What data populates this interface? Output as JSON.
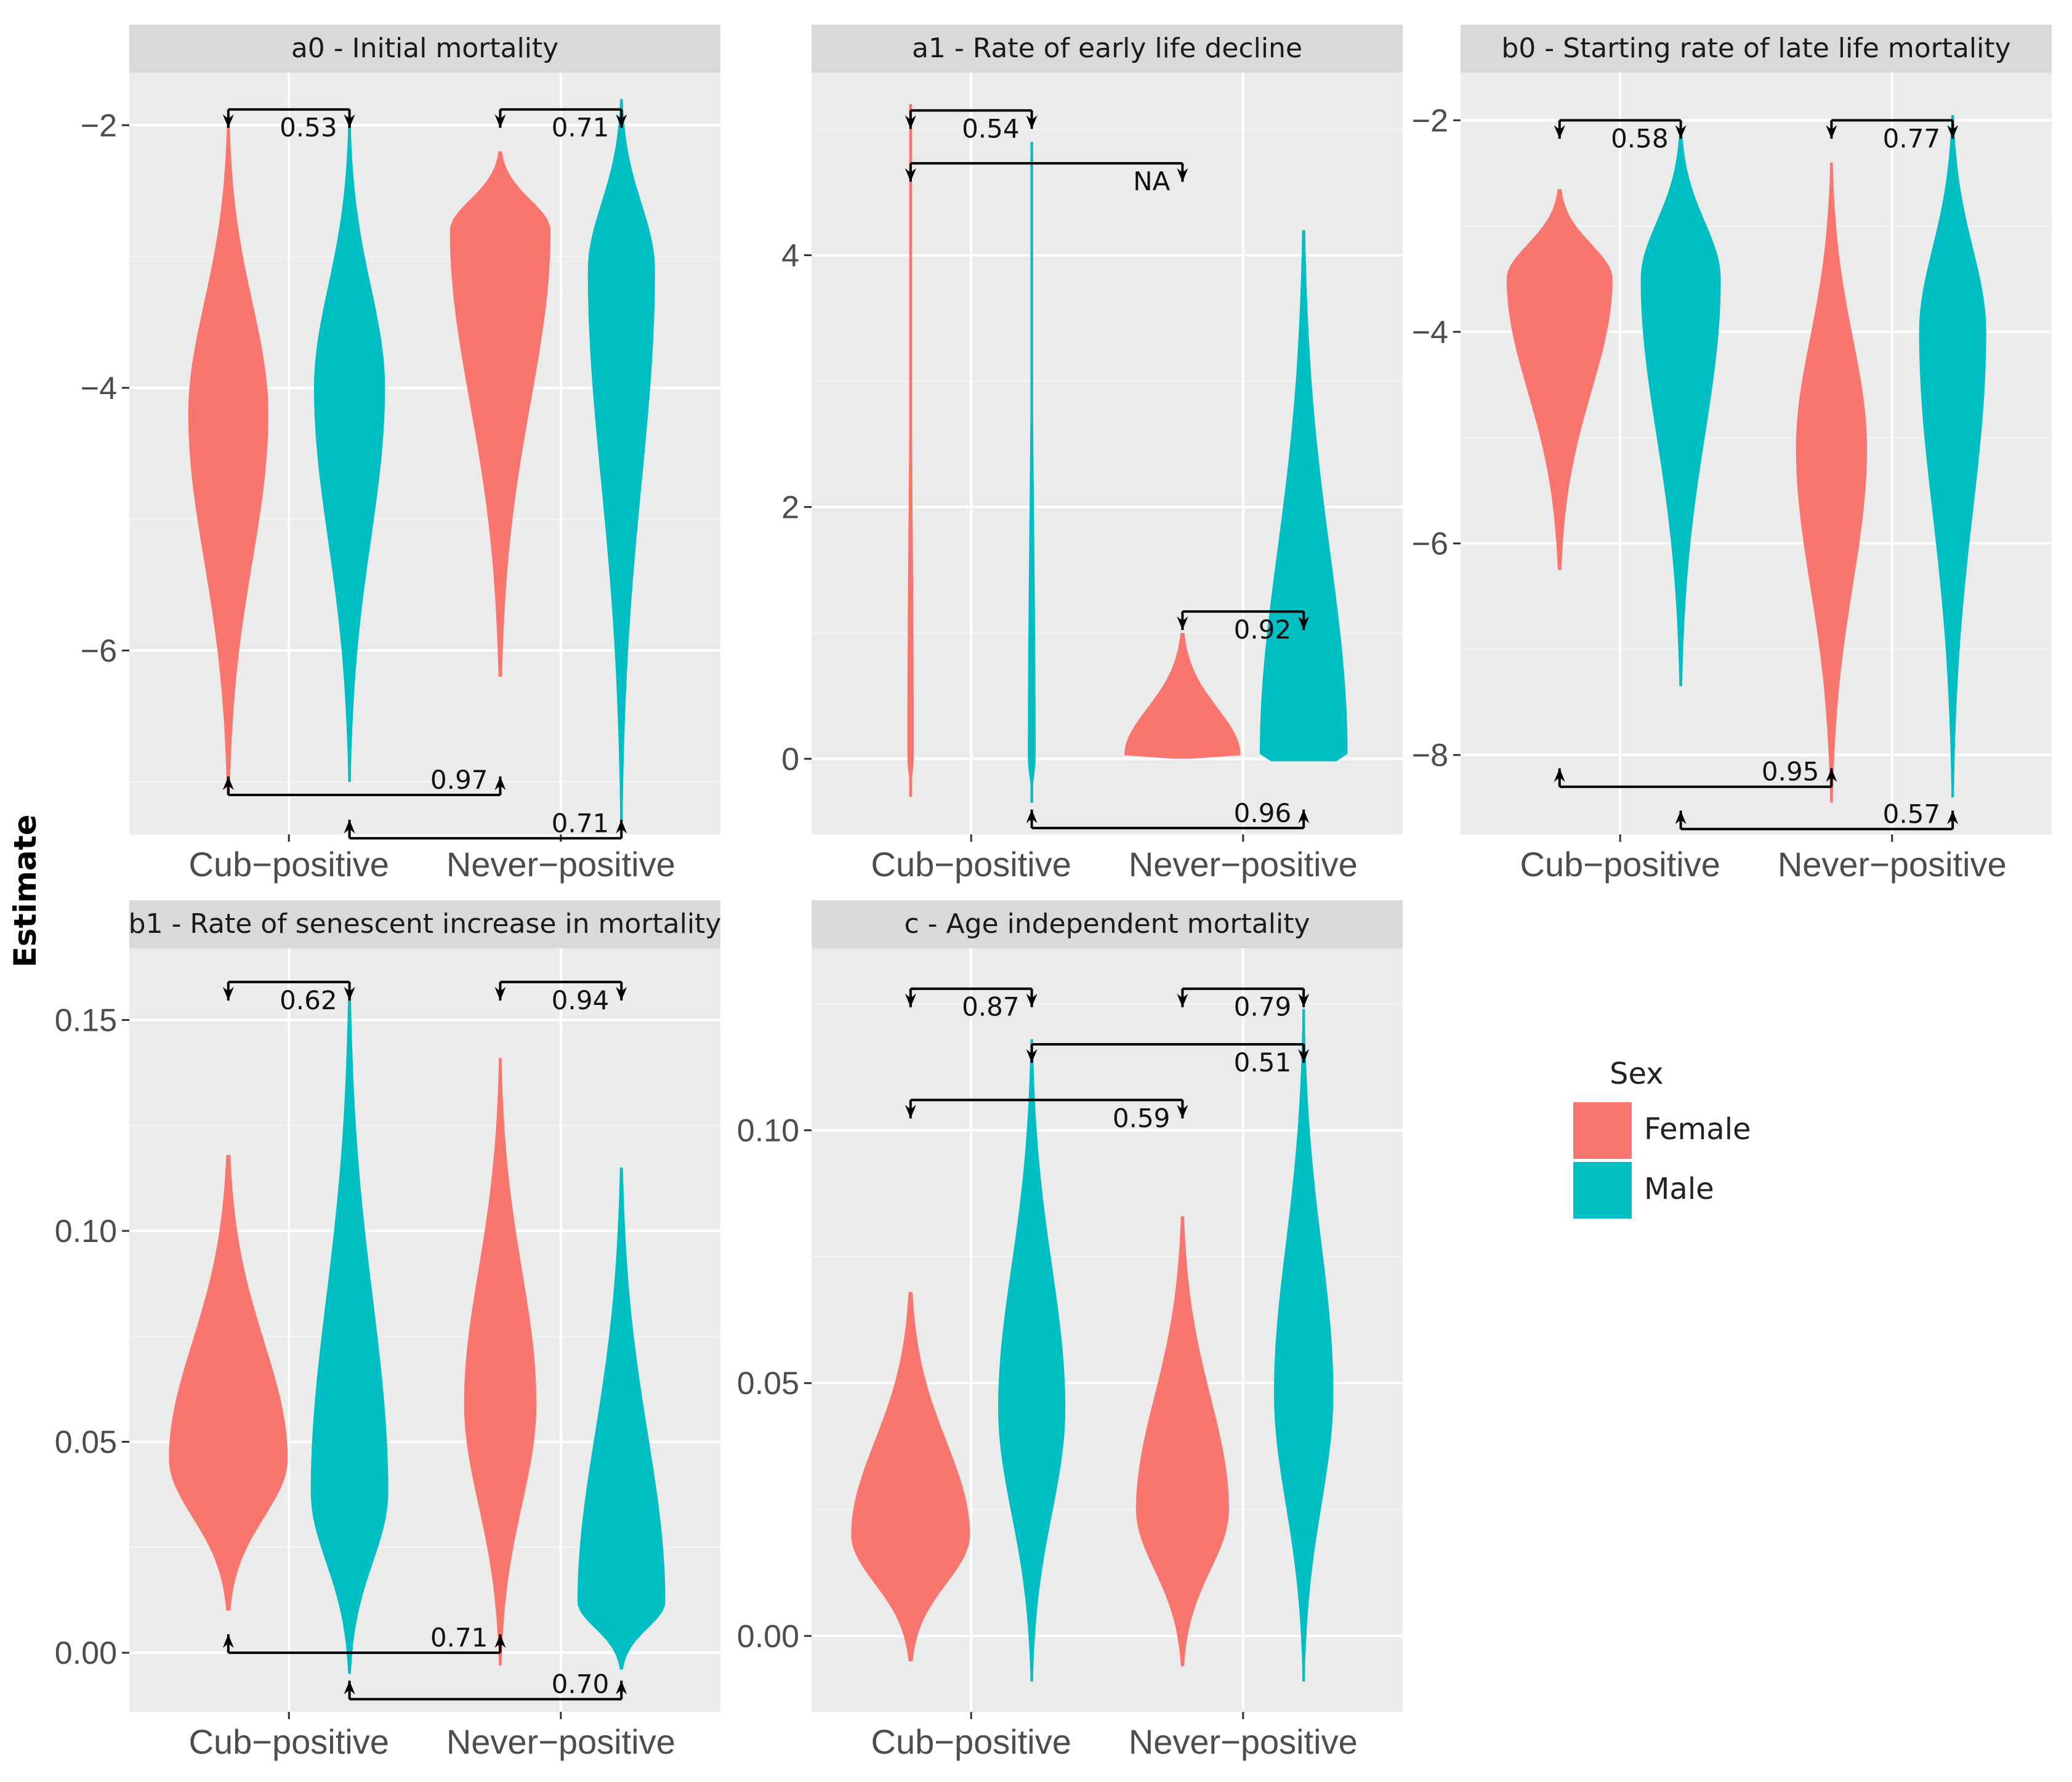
{
  "figure": {
    "ylabel": "Estimate",
    "xlabel": "",
    "legend": {
      "title": "Sex",
      "entries": [
        {
          "label": "Female",
          "color": "#F8766D"
        },
        {
          "label": "Male",
          "color": "#00BFC4"
        }
      ],
      "position": "right"
    }
  },
  "chart_data": [
    {
      "type": "violin",
      "title": "a0 - Initial mortality",
      "categories": [
        "Cub−positive",
        "Never−positive"
      ],
      "ylim": [
        -7.4,
        -1.6
      ],
      "yticks": [
        -6,
        -4,
        -2
      ],
      "ytick_labels": [
        "−6",
        "−4",
        "−2"
      ],
      "series": [
        {
          "name": "Female",
          "violins": [
            {
              "category": "Cub−positive",
              "min": -7.1,
              "max": -2.0,
              "peak": -4.2,
              "width": 0.62
            },
            {
              "category": "Never−positive",
              "min": -6.2,
              "max": -2.2,
              "peak": -2.8,
              "width": 0.78
            }
          ]
        },
        {
          "name": "Male",
          "violins": [
            {
              "category": "Cub−positive",
              "min": -7.0,
              "max": -2.0,
              "peak": -4.0,
              "width": 0.55
            },
            {
              "category": "Never−positive",
              "min": -7.3,
              "max": -1.8,
              "peak": -3.1,
              "width": 0.52
            }
          ]
        }
      ],
      "comparisons": [
        {
          "label": "0.53",
          "from": "Female Cub−positive",
          "to": "Male Cub−positive",
          "y": -1.88,
          "dir": "down"
        },
        {
          "label": "0.71",
          "from": "Female Never−positive",
          "to": "Male Never−positive",
          "y": -1.88,
          "dir": "down"
        },
        {
          "label": "0.97",
          "from": "Female Cub−positive",
          "to": "Female Never−positive",
          "y": -7.1,
          "dir": "up"
        },
        {
          "label": "0.71",
          "from": "Male Cub−positive",
          "to": "Male Never−positive",
          "y": -7.43,
          "dir": "up"
        }
      ]
    },
    {
      "type": "violin",
      "title": "a1 - Rate of early life decline",
      "categories": [
        "Cub−positive",
        "Never−positive"
      ],
      "ylim": [
        -0.6,
        5.45
      ],
      "yticks": [
        0,
        2,
        4
      ],
      "ytick_labels": [
        "0",
        "2",
        "4"
      ],
      "series": [
        {
          "name": "Female",
          "violins": [
            {
              "category": "Cub−positive",
              "min": -0.3,
              "max": 5.2,
              "peak": 0.0,
              "width": 0.05
            },
            {
              "category": "Never−positive",
              "min": 0.0,
              "max": 1.0,
              "peak": 0.03,
              "width": 0.9
            }
          ]
        },
        {
          "name": "Male",
          "violins": [
            {
              "category": "Cub−positive",
              "min": -0.35,
              "max": 4.9,
              "peak": 0.0,
              "width": 0.06
            },
            {
              "category": "Never−positive",
              "min": -0.02,
              "max": 4.2,
              "peak": 0.03,
              "width": 0.68
            }
          ]
        }
      ],
      "comparisons": [
        {
          "label": "0.54",
          "from": "Female Cub−positive",
          "to": "Male Cub−positive",
          "y": 5.15,
          "dir": "down"
        },
        {
          "label": "NA",
          "from": "Female Cub−positive",
          "to": "Female Never−positive",
          "y": 4.73,
          "dir": "down"
        },
        {
          "label": "0.92",
          "from": "Female Never−positive",
          "to": "Male Never−positive",
          "y": 1.17,
          "dir": "down"
        },
        {
          "label": "0.96",
          "from": "Male Cub−positive",
          "to": "Male Never−positive",
          "y": -0.55,
          "dir": "up"
        }
      ]
    },
    {
      "type": "violin",
      "title": "b0 - Starting rate of late life mortality",
      "categories": [
        "Cub−positive",
        "Never−positive"
      ],
      "ylim": [
        -8.75,
        -1.55
      ],
      "yticks": [
        -8,
        -6,
        -4,
        -2
      ],
      "ytick_labels": [
        "−8",
        "−6",
        "−4",
        "−2"
      ],
      "series": [
        {
          "name": "Female",
          "violins": [
            {
              "category": "Cub−positive",
              "min": -6.25,
              "max": -2.65,
              "peak": -3.5,
              "width": 0.82
            },
            {
              "category": "Never−positive",
              "min": -8.45,
              "max": -2.4,
              "peak": -5.1,
              "width": 0.55
            }
          ]
        },
        {
          "name": "Male",
          "violins": [
            {
              "category": "Cub−positive",
              "min": -7.35,
              "max": -2.1,
              "peak": -3.5,
              "width": 0.62
            },
            {
              "category": "Never−positive",
              "min": -8.4,
              "max": -1.95,
              "peak": -4.0,
              "width": 0.52
            }
          ]
        }
      ],
      "comparisons": [
        {
          "label": "0.58",
          "from": "Female Cub−positive",
          "to": "Male Cub−positive",
          "y": -2.0,
          "dir": "down"
        },
        {
          "label": "0.77",
          "from": "Female Never−positive",
          "to": "Male Never−positive",
          "y": -2.0,
          "dir": "down"
        },
        {
          "label": "0.95",
          "from": "Female Cub−positive",
          "to": "Female Never−positive",
          "y": -8.3,
          "dir": "up"
        },
        {
          "label": "0.57",
          "from": "Male Cub−positive",
          "to": "Male Never−positive",
          "y": -8.7,
          "dir": "up"
        }
      ]
    },
    {
      "type": "violin",
      "title": "b1 - Rate of senescent increase in mortality",
      "categories": [
        "Cub−positive",
        "Never−positive"
      ],
      "ylim": [
        -0.014,
        0.167
      ],
      "yticks": [
        0.0,
        0.05,
        0.1,
        0.15
      ],
      "ytick_labels": [
        "0.00",
        "0.05",
        "0.10",
        "0.15"
      ],
      "series": [
        {
          "name": "Female",
          "violins": [
            {
              "category": "Cub−positive",
              "min": 0.01,
              "max": 0.118,
              "peak": 0.046,
              "width": 0.92
            },
            {
              "category": "Never−positive",
              "min": -0.003,
              "max": 0.141,
              "peak": 0.059,
              "width": 0.56
            }
          ]
        },
        {
          "name": "Male",
          "violins": [
            {
              "category": "Cub−positive",
              "min": -0.005,
              "max": 0.157,
              "peak": 0.038,
              "width": 0.6
            },
            {
              "category": "Never−positive",
              "min": -0.004,
              "max": 0.115,
              "peak": 0.012,
              "width": 0.68
            }
          ]
        }
      ],
      "comparisons": [
        {
          "label": "0.62",
          "from": "Female Cub−positive",
          "to": "Male Cub−positive",
          "y": 0.159,
          "dir": "down"
        },
        {
          "label": "0.94",
          "from": "Female Never−positive",
          "to": "Male Never−positive",
          "y": 0.159,
          "dir": "down"
        },
        {
          "label": "0.71",
          "from": "Female Cub−positive",
          "to": "Female Never−positive",
          "y": 0.0,
          "dir": "up"
        },
        {
          "label": "0.70",
          "from": "Male Cub−positive",
          "to": "Male Never−positive",
          "y": -0.011,
          "dir": "up"
        }
      ]
    },
    {
      "type": "violin",
      "title": "c - Age independent mortality",
      "categories": [
        "Cub−positive",
        "Never−positive"
      ],
      "ylim": [
        -0.015,
        0.136
      ],
      "yticks": [
        0.0,
        0.05,
        0.1
      ],
      "ytick_labels": [
        "0.00",
        "0.05",
        "0.10"
      ],
      "series": [
        {
          "name": "Female",
          "violins": [
            {
              "category": "Cub−positive",
              "min": -0.005,
              "max": 0.068,
              "peak": 0.02,
              "width": 0.92
            },
            {
              "category": "Never−positive",
              "min": -0.006,
              "max": 0.083,
              "peak": 0.025,
              "width": 0.72
            }
          ]
        },
        {
          "name": "Male",
          "violins": [
            {
              "category": "Cub−positive",
              "min": -0.009,
              "max": 0.118,
              "peak": 0.045,
              "width": 0.52
            },
            {
              "category": "Never−positive",
              "min": -0.009,
              "max": 0.124,
              "peak": 0.048,
              "width": 0.46
            }
          ]
        }
      ],
      "comparisons": [
        {
          "label": "0.87",
          "from": "Female Cub−positive",
          "to": "Male Cub−positive",
          "y": 0.128,
          "dir": "down"
        },
        {
          "label": "0.79",
          "from": "Female Never−positive",
          "to": "Male Never−positive",
          "y": 0.128,
          "dir": "down"
        },
        {
          "label": "0.51",
          "from": "Male Cub−positive",
          "to": "Male Never−positive",
          "y": 0.117,
          "dir": "down"
        },
        {
          "label": "0.59",
          "from": "Female Cub−positive",
          "to": "Female Never−positive",
          "y": 0.106,
          "dir": "down"
        }
      ]
    }
  ]
}
